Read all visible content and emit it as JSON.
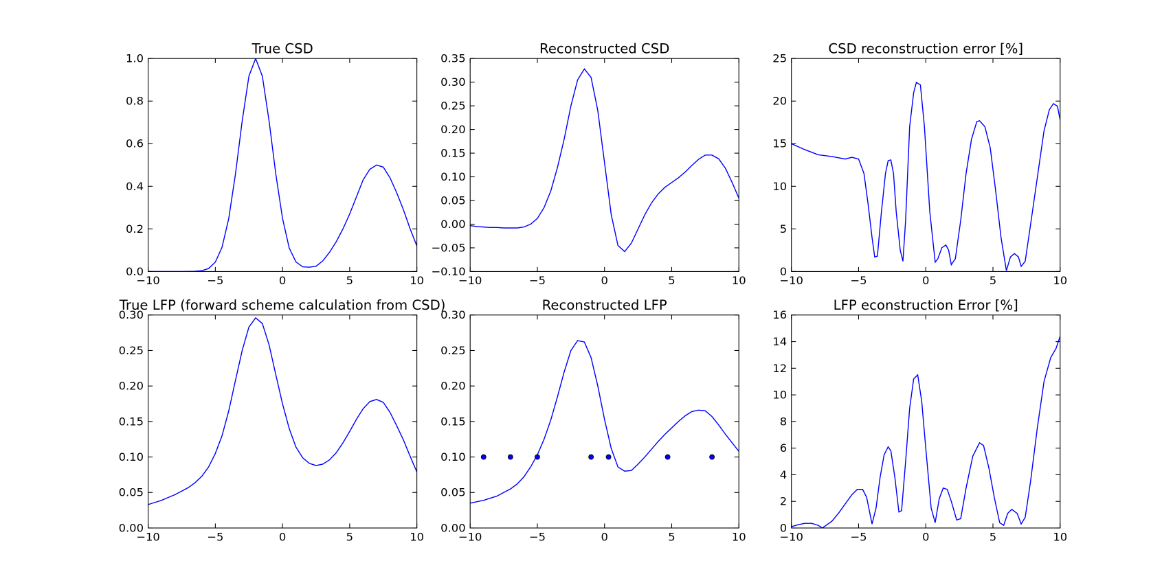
{
  "chart_data": [
    {
      "type": "line",
      "title": "True CSD",
      "x": [
        -10,
        -9.5,
        -9,
        -8.5,
        -8,
        -7.5,
        -7,
        -6.5,
        -6,
        -5.5,
        -5,
        -4.5,
        -4,
        -3.5,
        -3,
        -2.5,
        -2,
        -1.5,
        -1,
        -0.5,
        0,
        0.5,
        1,
        1.5,
        2,
        2.5,
        3,
        3.5,
        4,
        4.5,
        5,
        5.5,
        6,
        6.5,
        7,
        7.5,
        8,
        8.5,
        9,
        9.5,
        10
      ],
      "values": [
        0,
        0,
        0,
        0,
        0,
        0,
        0.0002,
        0.0009,
        0.004,
        0.014,
        0.044,
        0.114,
        0.249,
        0.458,
        0.707,
        0.917,
        1,
        0.917,
        0.707,
        0.458,
        0.25,
        0.11,
        0.045,
        0.022,
        0.02,
        0.025,
        0.05,
        0.09,
        0.14,
        0.2,
        0.27,
        0.35,
        0.43,
        0.48,
        0.5,
        0.49,
        0.44,
        0.37,
        0.29,
        0.2,
        0.12
      ],
      "color": "#0000ff",
      "xlim": [
        -10,
        10
      ],
      "ylim": [
        0,
        1
      ],
      "xticks": [
        {
          "value": -10,
          "label": "−10"
        },
        {
          "value": -5,
          "label": "−5"
        },
        0,
        5,
        10
      ],
      "yticks": [
        {
          "value": 0,
          "label": "0.0"
        },
        {
          "value": 0.2,
          "label": "0.2"
        },
        {
          "value": 0.4,
          "label": "0.4"
        },
        {
          "value": 0.6,
          "label": "0.6"
        },
        {
          "value": 0.8,
          "label": "0.8"
        },
        {
          "value": 1,
          "label": "1.0"
        }
      ]
    },
    {
      "type": "line",
      "title": "Reconstructed CSD",
      "x": [
        -10,
        -9.5,
        -9,
        -8.5,
        -8,
        -7.5,
        -7,
        -6.5,
        -6,
        -5.5,
        -5,
        -4.5,
        -4,
        -3.5,
        -3,
        -2.5,
        -2,
        -1.5,
        -1,
        -0.5,
        0,
        0.5,
        1,
        1.5,
        2,
        2.5,
        3,
        3.5,
        4,
        4.5,
        5,
        5.5,
        6,
        6.5,
        7,
        7.5,
        8,
        8.5,
        9,
        9.5,
        10
      ],
      "values": [
        -0.003,
        -0.005,
        -0.006,
        -0.007,
        -0.007,
        -0.008,
        -0.008,
        -0.008,
        -0.006,
        0,
        0.012,
        0.035,
        0.07,
        0.12,
        0.18,
        0.25,
        0.305,
        0.328,
        0.31,
        0.24,
        0.13,
        0.02,
        -0.045,
        -0.058,
        -0.04,
        -0.01,
        0.02,
        0.045,
        0.064,
        0.078,
        0.088,
        0.098,
        0.11,
        0.124,
        0.137,
        0.146,
        0.146,
        0.138,
        0.118,
        0.088,
        0.055
      ],
      "color": "#0000ff",
      "xlim": [
        -10,
        10
      ],
      "ylim": [
        -0.1,
        0.35
      ],
      "xticks": [
        {
          "value": -10,
          "label": "−10"
        },
        {
          "value": -5,
          "label": "−5"
        },
        0,
        5,
        10
      ],
      "yticks": [
        {
          "value": -0.1,
          "label": "−0.10"
        },
        {
          "value": -0.05,
          "label": "−0.05"
        },
        {
          "value": 0,
          "label": "0.00"
        },
        {
          "value": 0.05,
          "label": "0.05"
        },
        {
          "value": 0.1,
          "label": "0.10"
        },
        {
          "value": 0.15,
          "label": "0.15"
        },
        {
          "value": 0.2,
          "label": "0.20"
        },
        {
          "value": 0.25,
          "label": "0.25"
        },
        {
          "value": 0.3,
          "label": "0.30"
        },
        {
          "value": 0.35,
          "label": "0.35"
        }
      ]
    },
    {
      "type": "line",
      "title": "CSD reconstruction error [%]",
      "x": [
        -10,
        -9,
        -8,
        -7,
        -6,
        -5.5,
        -5,
        -4.6,
        -4.3,
        -4,
        -3.8,
        -3.6,
        -3.3,
        -3,
        -2.8,
        -2.6,
        -2.4,
        -2.2,
        -1.9,
        -1.7,
        -1.5,
        -1.2,
        -0.9,
        -0.7,
        -0.4,
        -0.1,
        0.3,
        0.7,
        0.9,
        1.2,
        1.5,
        1.7,
        1.9,
        2.2,
        2.6,
        3,
        3.4,
        3.8,
        4,
        4.4,
        4.8,
        5.2,
        5.6,
        6,
        6.3,
        6.6,
        6.9,
        7.1,
        7.4,
        7.8,
        8.3,
        8.8,
        9.2,
        9.5,
        9.8,
        10
      ],
      "values": [
        15,
        14.3,
        13.7,
        13.5,
        13.2,
        13.4,
        13.2,
        11.5,
        8,
        4,
        1.7,
        1.8,
        7,
        11.5,
        13,
        13.1,
        11.5,
        7,
        2.5,
        1.2,
        6,
        17,
        21,
        22.2,
        21.9,
        17,
        7,
        1.1,
        1.5,
        2.8,
        3.1,
        2.5,
        0.8,
        1.5,
        6,
        11.5,
        15.5,
        17.6,
        17.7,
        17,
        14.5,
        9.5,
        4,
        0.1,
        1.7,
        2.1,
        1.7,
        0.6,
        1.2,
        5.5,
        11,
        16.5,
        19,
        19.7,
        19.4,
        17.8
      ],
      "color": "#0000ff",
      "xlim": [
        -10,
        10
      ],
      "ylim": [
        0,
        25
      ],
      "xticks": [
        {
          "value": -10,
          "label": "−10"
        },
        {
          "value": -5,
          "label": "−5"
        },
        0,
        5,
        10
      ],
      "yticks": [
        0,
        5,
        10,
        15,
        20,
        25
      ]
    },
    {
      "type": "line",
      "title": "True LFP (forward scheme calculation from CSD)",
      "x": [
        -10,
        -9.5,
        -9,
        -8.5,
        -8,
        -7.5,
        -7,
        -6.5,
        -6,
        -5.5,
        -5,
        -4.5,
        -4,
        -3.5,
        -3,
        -2.5,
        -2,
        -1.5,
        -1,
        -0.5,
        0,
        0.5,
        1,
        1.5,
        2,
        2.5,
        3,
        3.5,
        4,
        4.5,
        5,
        5.5,
        6,
        6.5,
        7,
        7.5,
        8,
        8.5,
        9,
        9.5,
        10
      ],
      "values": [
        0.033,
        0.036,
        0.039,
        0.043,
        0.047,
        0.052,
        0.057,
        0.064,
        0.073,
        0.086,
        0.105,
        0.13,
        0.165,
        0.208,
        0.25,
        0.283,
        0.296,
        0.288,
        0.258,
        0.216,
        0.175,
        0.14,
        0.114,
        0.099,
        0.091,
        0.088,
        0.09,
        0.096,
        0.106,
        0.12,
        0.136,
        0.153,
        0.168,
        0.178,
        0.181,
        0.177,
        0.163,
        0.144,
        0.124,
        0.101,
        0.079
      ],
      "color": "#0000ff",
      "xlim": [
        -10,
        10
      ],
      "ylim": [
        0,
        0.3
      ],
      "xticks": [
        {
          "value": -10,
          "label": "−10"
        },
        {
          "value": -5,
          "label": "−5"
        },
        0,
        5,
        10
      ],
      "yticks": [
        {
          "value": 0,
          "label": "0.00"
        },
        {
          "value": 0.05,
          "label": "0.05"
        },
        {
          "value": 0.1,
          "label": "0.10"
        },
        {
          "value": 0.15,
          "label": "0.15"
        },
        {
          "value": 0.2,
          "label": "0.20"
        },
        {
          "value": 0.25,
          "label": "0.25"
        },
        {
          "value": 0.3,
          "label": "0.30"
        }
      ]
    },
    {
      "type": "line",
      "title": "Reconstructed LFP",
      "x": [
        -10,
        -9.5,
        -9,
        -8.5,
        -8,
        -7.5,
        -7,
        -6.5,
        -6,
        -5.5,
        -5,
        -4.5,
        -4,
        -3.5,
        -3,
        -2.5,
        -2,
        -1.5,
        -1,
        -0.5,
        0,
        0.5,
        1,
        1.5,
        2,
        2.5,
        3,
        3.5,
        4,
        4.5,
        5,
        5.5,
        6,
        6.5,
        7,
        7.5,
        8,
        8.5,
        9,
        9.5,
        10
      ],
      "values": [
        0.035,
        0.037,
        0.039,
        0.042,
        0.045,
        0.05,
        0.055,
        0.062,
        0.072,
        0.086,
        0.103,
        0.125,
        0.152,
        0.185,
        0.22,
        0.25,
        0.264,
        0.262,
        0.24,
        0.2,
        0.153,
        0.112,
        0.086,
        0.08,
        0.081,
        0.09,
        0.1,
        0.111,
        0.122,
        0.132,
        0.141,
        0.15,
        0.158,
        0.164,
        0.166,
        0.165,
        0.157,
        0.145,
        0.132,
        0.12,
        0.108
      ],
      "scatter_x": [
        -9,
        -7,
        -5,
        -1,
        0.3,
        4.7,
        8
      ],
      "scatter_y": [
        0.1,
        0.1,
        0.1,
        0.1,
        0.1,
        0.1,
        0.1
      ],
      "color": "#0000ff",
      "xlim": [
        -10,
        10
      ],
      "ylim": [
        0,
        0.3
      ],
      "xticks": [
        {
          "value": -10,
          "label": "−10"
        },
        {
          "value": -5,
          "label": "−5"
        },
        0,
        5,
        10
      ],
      "yticks": [
        {
          "value": 0,
          "label": "0.00"
        },
        {
          "value": 0.05,
          "label": "0.05"
        },
        {
          "value": 0.1,
          "label": "0.10"
        },
        {
          "value": 0.15,
          "label": "0.15"
        },
        {
          "value": 0.2,
          "label": "0.20"
        },
        {
          "value": 0.25,
          "label": "0.25"
        },
        {
          "value": 0.3,
          "label": "0.30"
        }
      ]
    },
    {
      "type": "line",
      "title": "LFP econstruction Error [%]",
      "x": [
        -10,
        -9.5,
        -9,
        -8.5,
        -8,
        -7.7,
        -7,
        -6.5,
        -6,
        -5.5,
        -5.1,
        -4.7,
        -4.4,
        -4,
        -3.7,
        -3.4,
        -3.1,
        -2.8,
        -2.6,
        -2.3,
        -2,
        -1.8,
        -1.5,
        -1.2,
        -0.9,
        -0.6,
        -0.3,
        0,
        0.4,
        0.7,
        1,
        1.3,
        1.6,
        1.9,
        2.3,
        2.6,
        3,
        3.5,
        4,
        4.3,
        4.7,
        5.1,
        5.5,
        5.8,
        6.1,
        6.4,
        6.8,
        7.1,
        7.4,
        7.8,
        8.3,
        8.8,
        9.3,
        9.7,
        10
      ],
      "values": [
        0.1,
        0.25,
        0.35,
        0.35,
        0.2,
        0,
        0.5,
        1.1,
        1.8,
        2.5,
        2.9,
        2.9,
        2.3,
        0.3,
        1.5,
        3.8,
        5.5,
        6.1,
        5.8,
        3.8,
        1.2,
        1.3,
        5,
        9,
        11.2,
        11.5,
        9.5,
        6,
        1.5,
        0.4,
        2.2,
        3,
        2.9,
        2,
        0.6,
        0.7,
        3,
        5.4,
        6.4,
        6.2,
        4.5,
        2.3,
        0.4,
        0.2,
        1.1,
        1.4,
        1.1,
        0.3,
        0.8,
        3.5,
        7.5,
        11,
        12.8,
        13.5,
        14.4
      ],
      "color": "#0000ff",
      "xlim": [
        -10,
        10
      ],
      "ylim": [
        0,
        16
      ],
      "xticks": [
        {
          "value": -10,
          "label": "−10"
        },
        {
          "value": -5,
          "label": "−5"
        },
        0,
        5,
        10
      ],
      "yticks": [
        0,
        2,
        4,
        6,
        8,
        10,
        12,
        14,
        16
      ]
    }
  ]
}
